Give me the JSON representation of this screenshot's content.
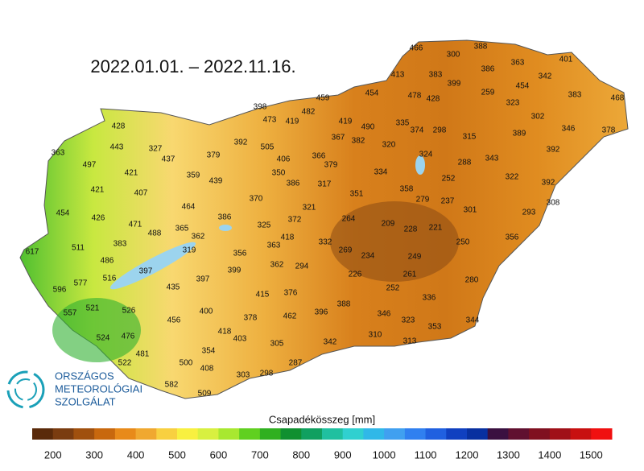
{
  "title": "2022.01.01. – 2022.11.16.",
  "logo": {
    "line1": "ORSZÁGOS",
    "line2": "METEOROLÓGIAI",
    "line3": "SZOLGÁLAT"
  },
  "legend": {
    "title": "Csapadékösszeg [mm]",
    "ticks": [
      200,
      300,
      400,
      500,
      600,
      700,
      800,
      900,
      1000,
      1100,
      1200,
      1300,
      1400,
      1500
    ],
    "colors": [
      "#5a2a0a",
      "#7a3c10",
      "#a0500e",
      "#c8680e",
      "#e88a1a",
      "#f0a830",
      "#f8d040",
      "#f8f040",
      "#d8f040",
      "#a8e830",
      "#60d020",
      "#30b020",
      "#109030",
      "#10a060",
      "#20c0a0",
      "#30d0d0",
      "#30b8e8",
      "#40a0f0",
      "#3080f0",
      "#2060e0",
      "#1040c0",
      "#0830a0",
      "#3a1040",
      "#601030",
      "#801020",
      "#a01018",
      "#c81010",
      "#f01010"
    ]
  },
  "stations": {
    "values": [
      466,
      388,
      300,
      363,
      401,
      386,
      342,
      413,
      383,
      399,
      454,
      383,
      468,
      454,
      478,
      428,
      259,
      323,
      398,
      482,
      459,
      473,
      419,
      419,
      490,
      335,
      374,
      298,
      302,
      346,
      378,
      315,
      389,
      428,
      363,
      443,
      327,
      437,
      379,
      392,
      505,
      367,
      382,
      320,
      324,
      392,
      497,
      421,
      359,
      439,
      406,
      350,
      366,
      379,
      386,
      317,
      334,
      288,
      343,
      322,
      392,
      421,
      407,
      464,
      370,
      252,
      358,
      351,
      279,
      237,
      301,
      293,
      308,
      454,
      426,
      471,
      386,
      321,
      372,
      264,
      209,
      228,
      221,
      488,
      365,
      362,
      325,
      418,
      250,
      356,
      383,
      319,
      356,
      363,
      332,
      269,
      234,
      249,
      617,
      511,
      486,
      397,
      362,
      294,
      399,
      226,
      261,
      516,
      397,
      435,
      280,
      596,
      577,
      252,
      415,
      376,
      388,
      336,
      557,
      521,
      526,
      400,
      378,
      462,
      396,
      346,
      456,
      323,
      353,
      344,
      418,
      403,
      310,
      313,
      476,
      524,
      342,
      305,
      481,
      354,
      522,
      500,
      408,
      287,
      303,
      298,
      582,
      509
    ]
  }
}
